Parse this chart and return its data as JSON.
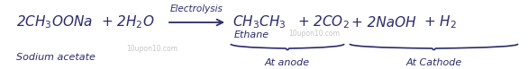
{
  "background_color": "#ffffff",
  "figsize": [
    5.86,
    0.77
  ],
  "dpi": 100,
  "text_color": "#2b2b6b",
  "watermark_color": "#b8b8b8",
  "main_fontsize": 11,
  "label_fontsize": 8,
  "small_fontsize": 7.5,
  "reactant1": "2CH$_3$OONa",
  "reactant2": "+ 2H$_2$O",
  "reactant_label": "Sodium acetate",
  "arrow_label": "Electrolysis",
  "product1": "CH$_3$CH$_3$",
  "product2": "+ 2CO$_2$",
  "product3": "+ 2NaOH",
  "product4": "+ H$_2$",
  "ethane_label": "Ethane",
  "brace1_label": "At anode",
  "brace2_label": "At Cathode",
  "watermark1": "10upon10.com",
  "watermark2": "10upon10.com"
}
